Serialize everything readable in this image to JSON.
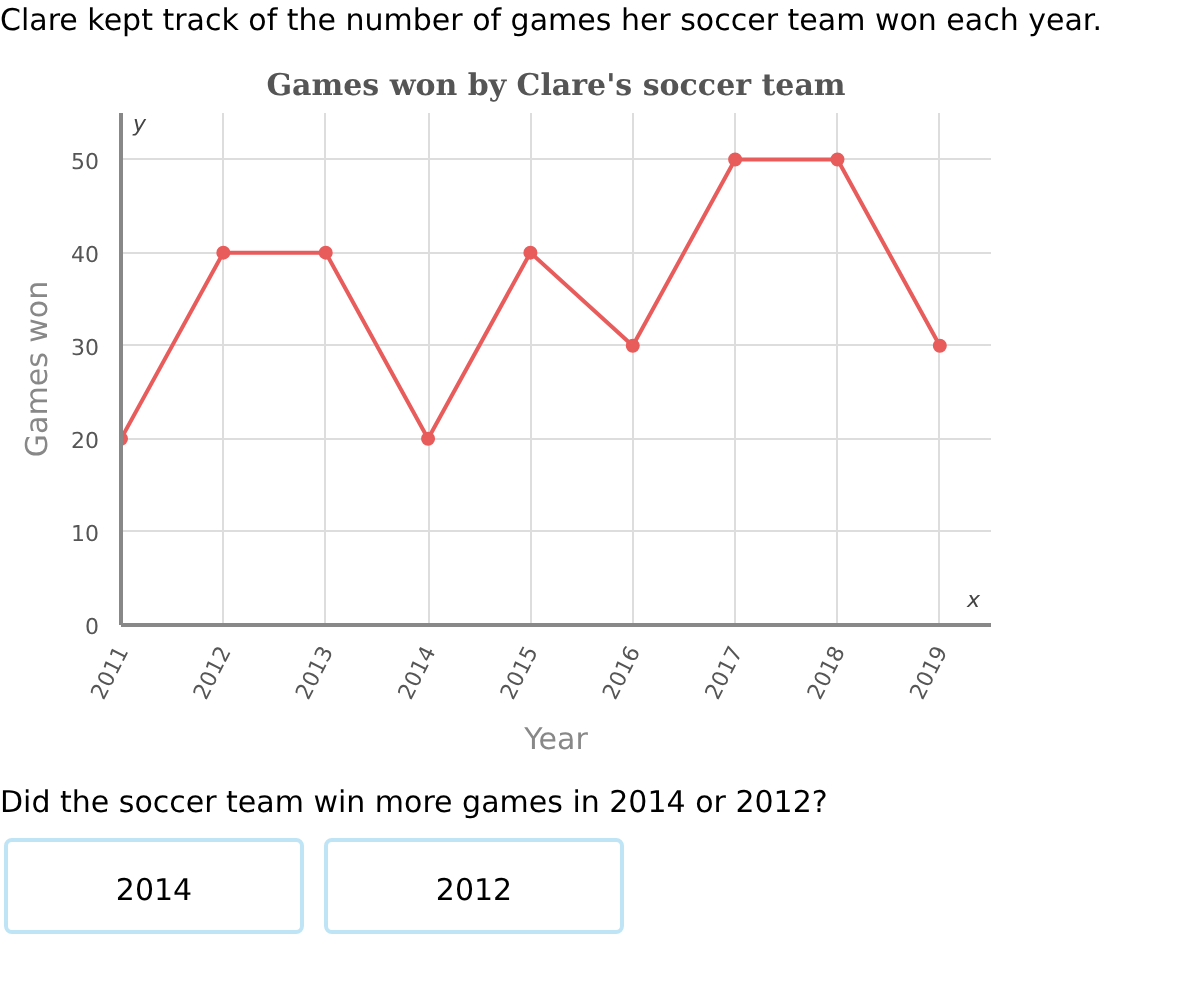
{
  "chart_data": {
    "type": "line",
    "title": "Games won by Clare's soccer team",
    "xlabel": "Year",
    "ylabel": "Games won",
    "categories": [
      "2011",
      "2012",
      "2013",
      "2014",
      "2015",
      "2016",
      "2017",
      "2018",
      "2019"
    ],
    "series": [
      {
        "color": "#e85c5c",
        "values": [
          20,
          40,
          40,
          20,
          40,
          30,
          50,
          50,
          30
        ]
      }
    ],
    "ylim": [
      0,
      55
    ],
    "yticks": [
      0,
      10,
      20,
      30,
      40,
      50
    ],
    "grid": true,
    "marker": "circle",
    "line_style": "solid",
    "annotations": [
      "Clare kept track of the number of games her soccer team won each year.",
      "y",
      "x",
      "Did the soccer team win more games in 2014 or 2012?",
      "2014",
      "2012"
    ]
  }
}
